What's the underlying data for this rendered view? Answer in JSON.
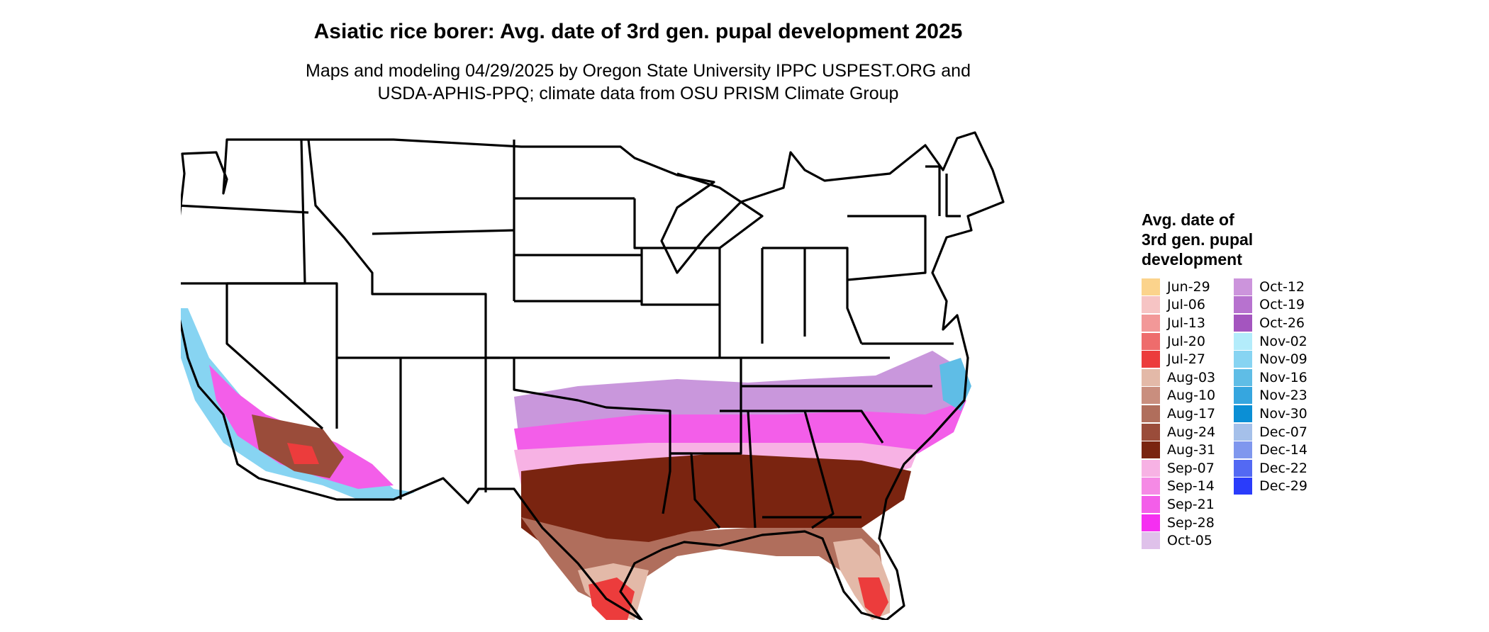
{
  "title": "Asiatic rice borer: Avg. date of 3rd gen. pupal development 2025",
  "subtitle_line1": "Maps and modeling 04/29/2025 by Oregon State University IPPC USPEST.ORG and",
  "subtitle_line2": "USDA-APHIS-PPQ; climate data from OSU PRISM Climate Group",
  "legend": {
    "title_lines": [
      "Avg. date of",
      "3rd gen. pupal",
      "development"
    ],
    "column1": [
      {
        "label": "Jun-29",
        "color": "#fbd38c"
      },
      {
        "label": "Jul-06",
        "color": "#f6c4c4"
      },
      {
        "label": "Jul-13",
        "color": "#f29898"
      },
      {
        "label": "Jul-20",
        "color": "#ee6c6c"
      },
      {
        "label": "Jul-27",
        "color": "#ec3c3c"
      },
      {
        "label": "Aug-03",
        "color": "#e3b9a8"
      },
      {
        "label": "Aug-10",
        "color": "#c98e7e"
      },
      {
        "label": "Aug-17",
        "color": "#b06e5c"
      },
      {
        "label": "Aug-24",
        "color": "#9a4c3a"
      },
      {
        "label": "Aug-31",
        "color": "#7a2410"
      },
      {
        "label": "Sep-07",
        "color": "#f7b2e4"
      },
      {
        "label": "Sep-14",
        "color": "#f58ae5"
      },
      {
        "label": "Sep-21",
        "color": "#f35ee9"
      },
      {
        "label": "Sep-28",
        "color": "#f52ff1"
      },
      {
        "label": "Oct-05",
        "color": "#dfc1ea"
      }
    ],
    "column2": [
      {
        "label": "Oct-12",
        "color": "#cc94dc"
      },
      {
        "label": "Oct-19",
        "color": "#b772cf"
      },
      {
        "label": "Oct-26",
        "color": "#a455bf"
      },
      {
        "label": "Nov-02",
        "color": "#b3ecfb"
      },
      {
        "label": "Nov-09",
        "color": "#87d4f2"
      },
      {
        "label": "Nov-16",
        "color": "#5fbde6"
      },
      {
        "label": "Nov-23",
        "color": "#36a6df"
      },
      {
        "label": "Nov-30",
        "color": "#0b8fd5"
      },
      {
        "label": "Dec-07",
        "color": "#a5c0ea"
      },
      {
        "label": "Dec-14",
        "color": "#7f97ee"
      },
      {
        "label": "Dec-22",
        "color": "#5369f3"
      },
      {
        "label": "Dec-29",
        "color": "#2a3cfb"
      }
    ]
  }
}
